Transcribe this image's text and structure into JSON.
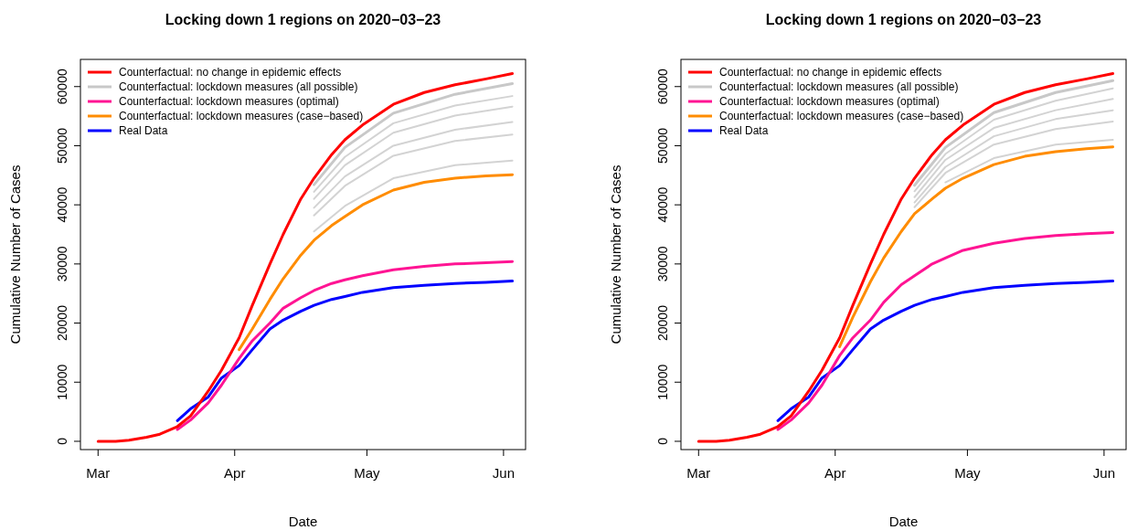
{
  "chart_data": [
    {
      "type": "line",
      "title": "Locking down 1 regions on 2020−03−23",
      "xlabel": "Date",
      "ylabel": "Cumulative Number of Cases",
      "legend": "top left",
      "marker": "none",
      "line_style": "solid",
      "x": [
        "2020-03-01",
        "2020-03-05",
        "2020-03-08",
        "2020-03-12",
        "2020-03-15",
        "2020-03-19",
        "2020-03-22",
        "2020-03-26",
        "2020-03-29",
        "2020-04-02",
        "2020-04-05",
        "2020-04-09",
        "2020-04-12",
        "2020-04-16",
        "2020-04-19",
        "2020-04-23",
        "2020-04-26",
        "2020-04-30",
        "2020-05-07",
        "2020-05-14",
        "2020-05-21",
        "2020-05-28",
        "2020-06-03"
      ],
      "xlim": [
        "2020-02-26",
        "2020-06-06"
      ],
      "xticks": [
        {
          "value": "2020-03-01",
          "label": "Mar"
        },
        {
          "value": "2020-04-01",
          "label": "Apr"
        },
        {
          "value": "2020-05-01",
          "label": "May"
        },
        {
          "value": "2020-06-01",
          "label": "Jun"
        }
      ],
      "ylim": [
        -1400,
        64600
      ],
      "yticks": [
        0,
        10000,
        20000,
        30000,
        40000,
        50000,
        60000
      ],
      "series": [
        {
          "name": "Counterfactual: no change in epidemic effects",
          "color": "#ff0000",
          "values": [
            0,
            0,
            200,
            700,
            1200,
            2500,
            4300,
            8500,
            12000,
            17500,
            23000,
            30000,
            35000,
            41000,
            44500,
            48500,
            51000,
            53500,
            57000,
            59000,
            60300,
            61300,
            62200
          ]
        },
        {
          "name": "Counterfactual: lockdown measures (all possible)",
          "color": "#c8c8c8",
          "x": [
            "2020-04-19",
            "2020-04-26",
            "2020-05-07",
            "2020-05-21",
            "2020-06-03"
          ],
          "values": [
            43400,
            49700,
            55500,
            58700,
            60500
          ]
        },
        {
          "name": "Counterfactual: lockdown measures (optimal)",
          "color": "#ff1493",
          "values": [
            null,
            null,
            null,
            null,
            null,
            2000,
            3600,
            6500,
            9500,
            14000,
            17000,
            20000,
            22500,
            24300,
            25500,
            26700,
            27300,
            28000,
            29000,
            29600,
            30000,
            30200,
            30400
          ]
        },
        {
          "name": "Counterfactual: lockdown measures (case−based)",
          "color": "#ff8c00",
          "values": [
            null,
            null,
            null,
            null,
            null,
            null,
            null,
            null,
            null,
            15500,
            19000,
            24000,
            27500,
            31500,
            34000,
            36500,
            38000,
            40000,
            42500,
            43800,
            44500,
            44900,
            45100
          ]
        },
        {
          "name": "Real Data",
          "color": "#0000ff",
          "values": [
            null,
            null,
            null,
            null,
            null,
            3500,
            5500,
            7500,
            10700,
            12800,
            15500,
            19000,
            20500,
            22000,
            23000,
            24000,
            24500,
            25200,
            26000,
            26400,
            26700,
            26900,
            27100
          ]
        },
        {
          "color": "#d3d3d3",
          "x": [
            "2020-04-19",
            "2020-04-26",
            "2020-05-07",
            "2020-05-21",
            "2020-06-03"
          ],
          "values": [
            42200,
            48100,
            53800,
            56800,
            58400
          ]
        },
        {
          "color": "#d3d3d3",
          "x": [
            "2020-04-19",
            "2020-04-26",
            "2020-05-07",
            "2020-05-21",
            "2020-06-03"
          ],
          "values": [
            41000,
            46700,
            52200,
            55100,
            56600
          ]
        },
        {
          "color": "#d3d3d3",
          "x": [
            "2020-04-19",
            "2020-04-26",
            "2020-05-07",
            "2020-05-21",
            "2020-06-03"
          ],
          "values": [
            39500,
            44800,
            50000,
            52700,
            54000
          ]
        },
        {
          "color": "#d3d3d3",
          "x": [
            "2020-04-19",
            "2020-04-26",
            "2020-05-07",
            "2020-05-21",
            "2020-06-03"
          ],
          "values": [
            38200,
            43200,
            48300,
            50800,
            51900
          ]
        },
        {
          "color": "#d3d3d3",
          "x": [
            "2020-04-19",
            "2020-04-26",
            "2020-05-07",
            "2020-05-21",
            "2020-06-03"
          ],
          "values": [
            35500,
            39800,
            44500,
            46700,
            47500
          ]
        }
      ]
    },
    {
      "type": "line",
      "title": "Locking down 1 regions on 2020−03−23",
      "xlabel": "Date",
      "ylabel": "Cumulative Number of Cases",
      "legend": "top left",
      "marker": "none",
      "line_style": "solid",
      "x": [
        "2020-03-01",
        "2020-03-05",
        "2020-03-08",
        "2020-03-12",
        "2020-03-15",
        "2020-03-19",
        "2020-03-22",
        "2020-03-26",
        "2020-03-29",
        "2020-04-02",
        "2020-04-05",
        "2020-04-09",
        "2020-04-12",
        "2020-04-16",
        "2020-04-19",
        "2020-04-23",
        "2020-04-26",
        "2020-04-30",
        "2020-05-07",
        "2020-05-14",
        "2020-05-21",
        "2020-05-28",
        "2020-06-03"
      ],
      "xlim": [
        "2020-02-26",
        "2020-06-06"
      ],
      "xticks": [
        {
          "value": "2020-03-01",
          "label": "Mar"
        },
        {
          "value": "2020-04-01",
          "label": "Apr"
        },
        {
          "value": "2020-05-01",
          "label": "May"
        },
        {
          "value": "2020-06-01",
          "label": "Jun"
        }
      ],
      "ylim": [
        -1400,
        64600
      ],
      "yticks": [
        0,
        10000,
        20000,
        30000,
        40000,
        50000,
        60000
      ],
      "series": [
        {
          "name": "Counterfactual: no change in epidemic effects",
          "color": "#ff0000",
          "values": [
            0,
            0,
            200,
            700,
            1200,
            2500,
            4300,
            8500,
            12000,
            17500,
            23000,
            30000,
            35000,
            41000,
            44500,
            48500,
            51000,
            53500,
            57000,
            59000,
            60300,
            61300,
            62200
          ]
        },
        {
          "name": "Counterfactual: lockdown measures (all possible)",
          "color": "#c8c8c8",
          "x": [
            "2020-04-19",
            "2020-04-26",
            "2020-05-07",
            "2020-05-21",
            "2020-06-03"
          ],
          "values": [
            43300,
            49700,
            55600,
            59000,
            61000
          ]
        },
        {
          "name": "Counterfactual: lockdown measures (optimal)",
          "color": "#ff1493",
          "values": [
            null,
            null,
            null,
            null,
            null,
            2000,
            3600,
            6500,
            9500,
            14500,
            17500,
            20500,
            23500,
            26500,
            28000,
            30000,
            31000,
            32300,
            33500,
            34300,
            34800,
            35100,
            35300
          ]
        },
        {
          "name": "Counterfactual: lockdown measures (case−based)",
          "color": "#ff8c00",
          "values": [
            null,
            null,
            null,
            null,
            null,
            null,
            null,
            null,
            null,
            16000,
            21000,
            27000,
            31000,
            35500,
            38500,
            41000,
            42800,
            44500,
            46800,
            48200,
            49000,
            49500,
            49800
          ]
        },
        {
          "name": "Real Data",
          "color": "#0000ff",
          "values": [
            null,
            null,
            null,
            null,
            null,
            3500,
            5500,
            7500,
            10700,
            12800,
            15500,
            19000,
            20500,
            22000,
            23000,
            24000,
            24500,
            25200,
            26000,
            26400,
            26700,
            26900,
            27100
          ]
        },
        {
          "color": "#d3d3d3",
          "x": [
            "2020-04-19",
            "2020-04-26",
            "2020-05-07",
            "2020-05-21",
            "2020-06-03"
          ],
          "values": [
            42300,
            48600,
            54400,
            57600,
            59700
          ]
        },
        {
          "color": "#d3d3d3",
          "x": [
            "2020-04-19",
            "2020-04-26",
            "2020-05-07",
            "2020-05-21",
            "2020-06-03"
          ],
          "values": [
            41300,
            47600,
            53000,
            56000,
            57900
          ]
        },
        {
          "color": "#d3d3d3",
          "x": [
            "2020-04-19",
            "2020-04-26",
            "2020-05-07",
            "2020-05-21",
            "2020-06-03"
          ],
          "values": [
            40400,
            46400,
            51600,
            54500,
            56000
          ]
        },
        {
          "color": "#d3d3d3",
          "x": [
            "2020-04-19",
            "2020-04-26",
            "2020-05-07",
            "2020-05-21",
            "2020-06-03"
          ],
          "values": [
            39600,
            45400,
            50200,
            52800,
            54100
          ]
        },
        {
          "color": "#d3d3d3",
          "x": [
            "2020-04-26",
            "2020-05-07",
            "2020-05-21",
            "2020-06-03"
          ],
          "values": [
            43800,
            47900,
            50200,
            51000
          ]
        }
      ]
    }
  ]
}
